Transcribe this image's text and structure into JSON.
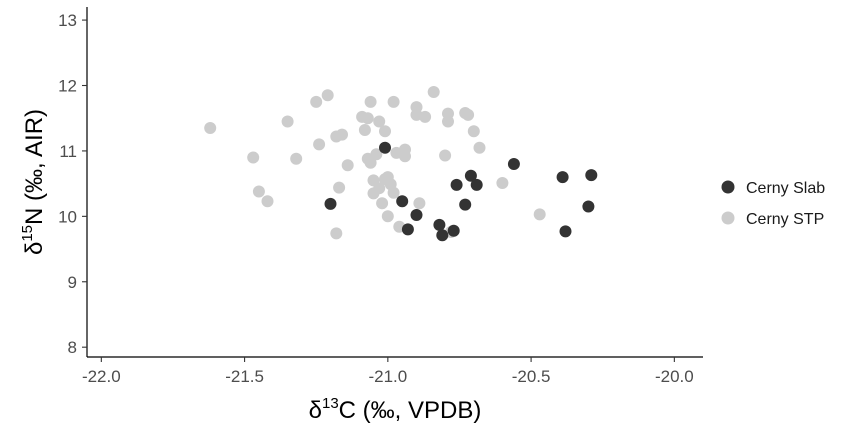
{
  "chart_data": {
    "type": "scatter",
    "xlim": [
      -22.05,
      -19.9
    ],
    "ylim": [
      7.85,
      13.2
    ],
    "x_ticks": [
      -22.0,
      -21.5,
      -21.0,
      -20.5,
      -20.0
    ],
    "x_tick_labels": [
      "-22.0",
      "-21.5",
      "-21.0",
      "-20.5",
      "-20.0"
    ],
    "y_ticks": [
      8,
      9,
      10,
      11,
      12,
      13
    ],
    "y_tick_labels": [
      "8",
      "9",
      "10",
      "11",
      "12",
      "13"
    ],
    "xlabel": {
      "delta": "δ",
      "sup": "13",
      "rest": "C (‰, VPDB)"
    },
    "ylabel": {
      "delta": "δ",
      "sup": "15",
      "rest": "N (‰, AIR)"
    },
    "grid": false,
    "legend_position": "right",
    "series": [
      {
        "name": "Cerny Slab",
        "color": "#333333",
        "points": [
          [
            -21.01,
            11.05
          ],
          [
            -21.2,
            10.19
          ],
          [
            -20.95,
            10.23
          ],
          [
            -20.93,
            9.8
          ],
          [
            -20.9,
            10.02
          ],
          [
            -20.82,
            9.87
          ],
          [
            -20.81,
            9.71
          ],
          [
            -20.77,
            9.78
          ],
          [
            -20.76,
            10.48
          ],
          [
            -20.73,
            10.18
          ],
          [
            -20.71,
            10.62
          ],
          [
            -20.69,
            10.48
          ],
          [
            -20.56,
            10.8
          ],
          [
            -20.39,
            10.6
          ],
          [
            -20.38,
            9.77
          ],
          [
            -20.3,
            10.15
          ],
          [
            -20.29,
            10.63
          ]
        ]
      },
      {
        "name": "Cerny STP",
        "color": "#cccccc",
        "points": [
          [
            -21.62,
            11.35
          ],
          [
            -21.47,
            10.9
          ],
          [
            -21.45,
            10.38
          ],
          [
            -21.42,
            10.23
          ],
          [
            -21.35,
            11.45
          ],
          [
            -21.32,
            10.88
          ],
          [
            -21.25,
            11.75
          ],
          [
            -21.24,
            11.1
          ],
          [
            -21.21,
            11.85
          ],
          [
            -21.18,
            11.22
          ],
          [
            -21.18,
            9.74
          ],
          [
            -21.17,
            10.44
          ],
          [
            -21.16,
            11.25
          ],
          [
            -21.14,
            10.78
          ],
          [
            -21.09,
            11.52
          ],
          [
            -21.08,
            11.32
          ],
          [
            -21.07,
            11.5
          ],
          [
            -21.07,
            10.88
          ],
          [
            -21.06,
            10.82
          ],
          [
            -21.06,
            11.75
          ],
          [
            -21.05,
            10.35
          ],
          [
            -21.05,
            10.55
          ],
          [
            -21.04,
            10.95
          ],
          [
            -21.03,
            10.43
          ],
          [
            -21.03,
            11.45
          ],
          [
            -21.02,
            10.2
          ],
          [
            -21.01,
            11.3
          ],
          [
            -21.01,
            10.57
          ],
          [
            -21.0,
            10.0
          ],
          [
            -21.0,
            10.6
          ],
          [
            -20.99,
            10.49
          ],
          [
            -20.98,
            11.75
          ],
          [
            -20.98,
            10.36
          ],
          [
            -20.97,
            10.97
          ],
          [
            -20.94,
            10.92
          ],
          [
            -20.94,
            11.02
          ],
          [
            -20.9,
            11.55
          ],
          [
            -20.9,
            11.67
          ],
          [
            -20.89,
            10.2
          ],
          [
            -20.87,
            11.52
          ],
          [
            -20.84,
            11.9
          ],
          [
            -20.8,
            10.93
          ],
          [
            -20.79,
            11.57
          ],
          [
            -20.79,
            11.45
          ],
          [
            -20.73,
            11.58
          ],
          [
            -20.72,
            11.55
          ],
          [
            -20.7,
            11.3
          ],
          [
            -20.68,
            11.05
          ],
          [
            -20.6,
            10.51
          ],
          [
            -20.47,
            10.03
          ],
          [
            -20.96,
            9.84
          ],
          [
            -20.78,
            9.76
          ]
        ]
      }
    ]
  }
}
